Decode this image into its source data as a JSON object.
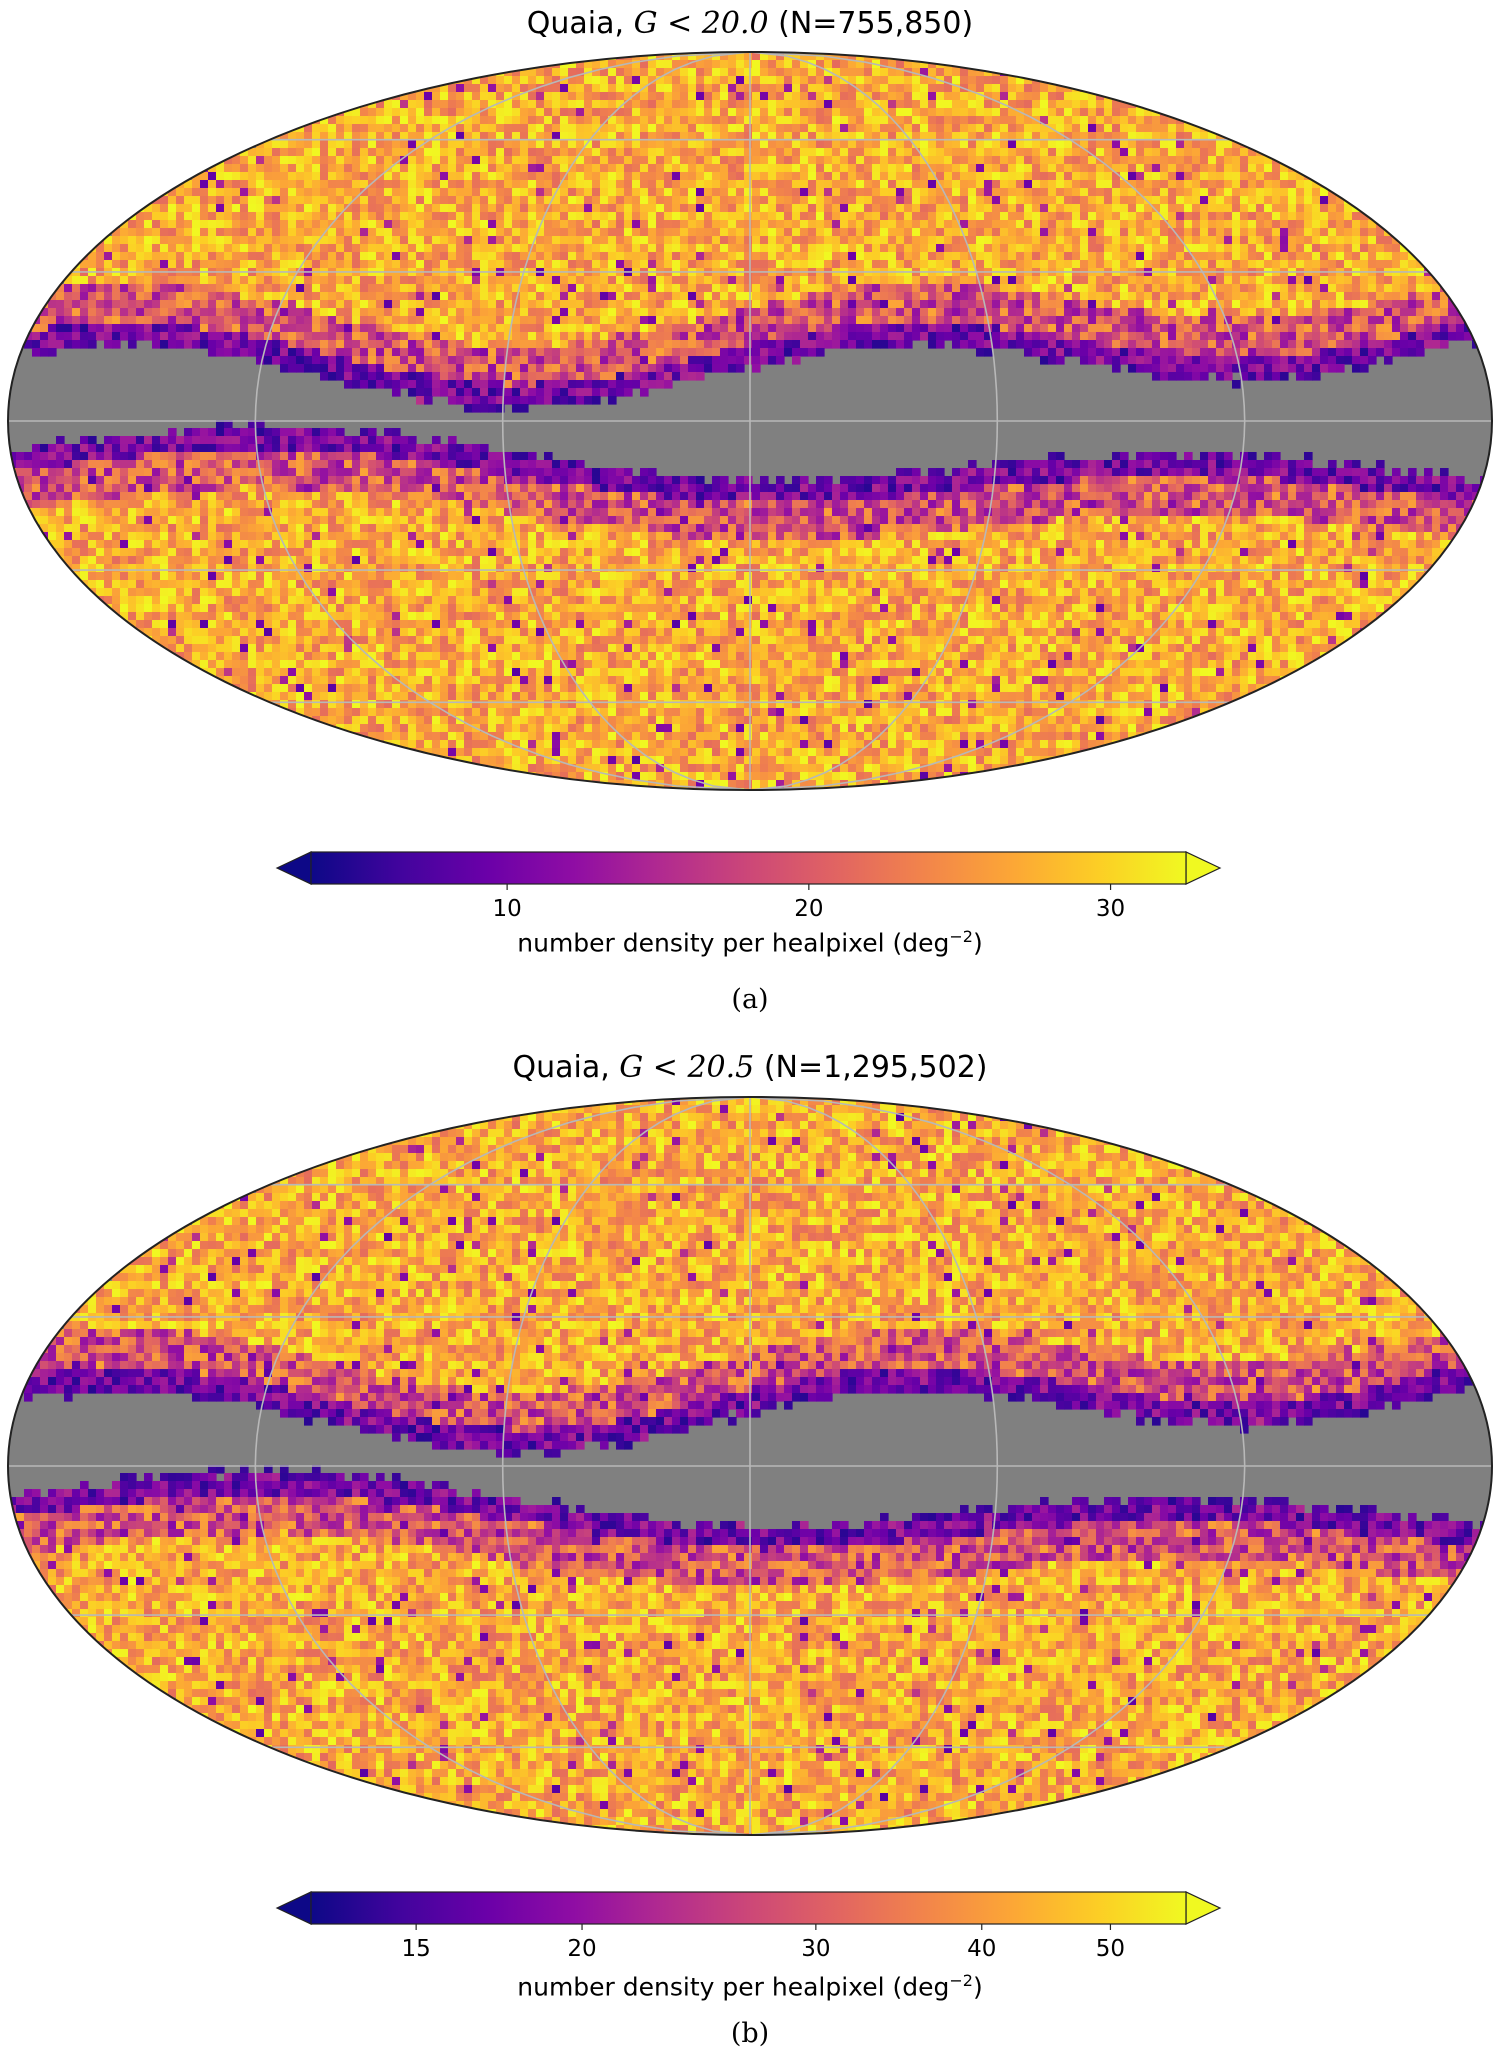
{
  "chart_data": [
    {
      "type": "heatmap",
      "projection": "Mollweide",
      "title": {
        "prefix": "Quaia,",
        "math": "G < 20.0",
        "suffix": "(N=755,850)"
      },
      "colormap": "plasma",
      "colorbar": {
        "label": "number density per healpixel (deg",
        "label_exp": "−2",
        "label_close": ")",
        "range": [
          3.5,
          32.5
        ],
        "ticks": [
          {
            "value": 10,
            "label": "10"
          },
          {
            "value": 20,
            "label": "20"
          },
          {
            "value": 30,
            "label": "30"
          }
        ],
        "extend": "both",
        "scale": "linear"
      },
      "masked_color": "#808080",
      "grid": true,
      "caption": "(a)"
    },
    {
      "type": "heatmap",
      "projection": "Mollweide",
      "title": {
        "prefix": "Quaia,",
        "math": "G < 20.5",
        "suffix": "(N=1,295,502)"
      },
      "colormap": "plasma",
      "colorbar": {
        "label": "number density per healpixel (deg",
        "label_exp": "−2",
        "label_close": ")",
        "range": [
          12.5,
          57
        ],
        "ticks": [
          {
            "value": 15,
            "label": "15"
          },
          {
            "value": 20,
            "label": "20"
          },
          {
            "value": 30,
            "label": "30"
          },
          {
            "value": 40,
            "label": "40"
          },
          {
            "value": 50,
            "label": "50"
          }
        ],
        "extend": "both",
        "scale": "log"
      },
      "masked_color": "#808080",
      "grid": true,
      "caption": "(b)"
    }
  ]
}
